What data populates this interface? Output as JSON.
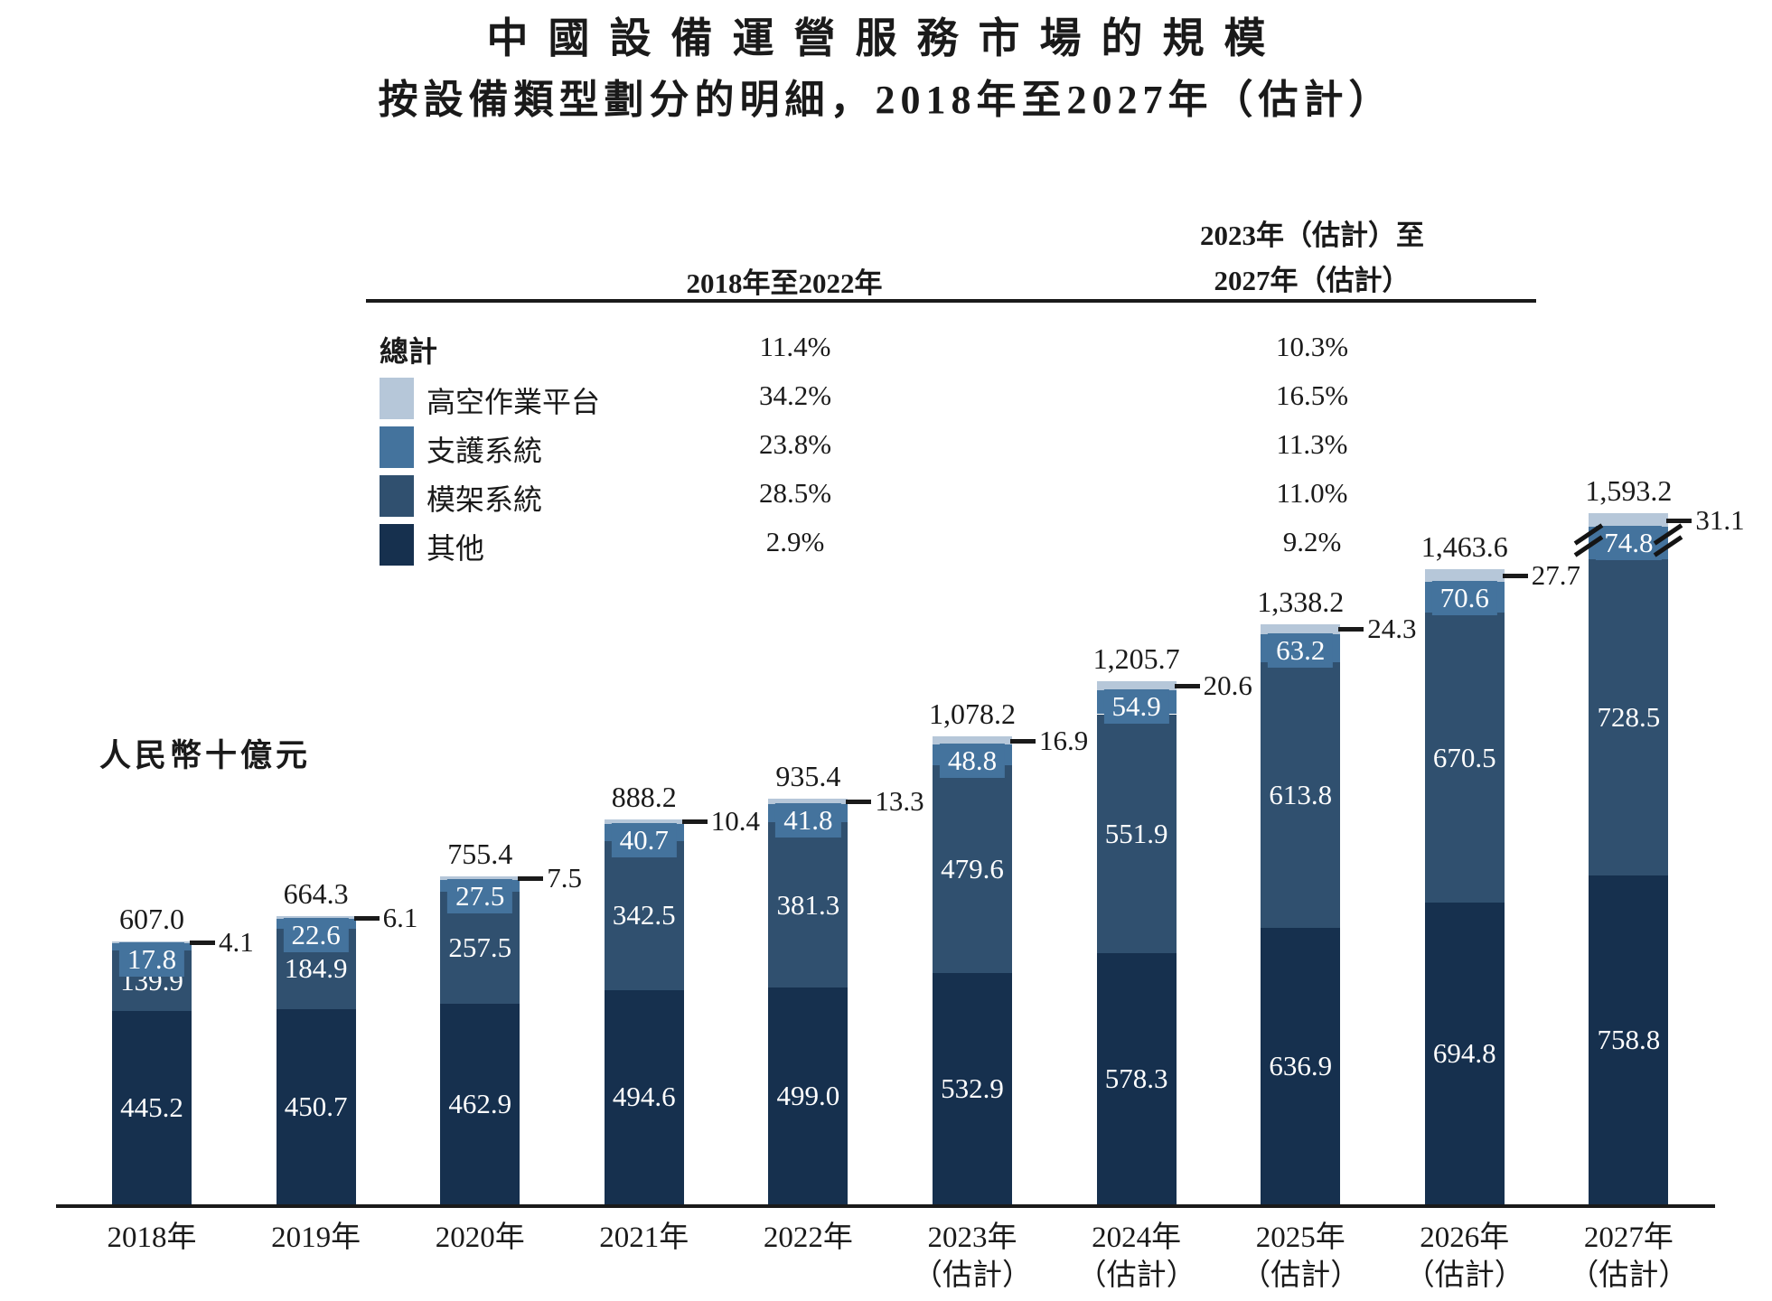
{
  "title": {
    "line1": "中國設備運營服務市場的規模",
    "line2": "按設備類型劃分的明細，2018年至2027年（估計）"
  },
  "unit_label": "人民幣十億元",
  "cagr_table": {
    "col1_header": "2018年至2022年",
    "col2_header_line1": "2023年（估計）至",
    "col2_header_line2": "2027年（估計）",
    "rows": [
      {
        "label": "總計",
        "swatch": null,
        "col1": "11.4%",
        "col2": "10.3%"
      },
      {
        "label": "高空作業平台",
        "swatch": "#b6c7d9",
        "col1": "34.2%",
        "col2": "16.5%"
      },
      {
        "label": "支護系統",
        "swatch": "#44739d",
        "col1": "23.8%",
        "col2": "11.3%"
      },
      {
        "label": "模架系統",
        "swatch": "#30506f",
        "col1": "28.5%",
        "col2": "11.0%"
      },
      {
        "label": "其他",
        "swatch": "#16304e",
        "col1": "2.9%",
        "col2": "9.2%"
      }
    ]
  },
  "chart_data": {
    "type": "bar",
    "stacked": true,
    "title": "中國設備運營服務市場的規模，按設備類型劃分的明細，2018年至2027年（估計）",
    "ylabel": "人民幣十億元",
    "grid": false,
    "legend_position": "table-top",
    "categories": [
      {
        "year": "2018年",
        "note": ""
      },
      {
        "year": "2019年",
        "note": ""
      },
      {
        "year": "2020年",
        "note": ""
      },
      {
        "year": "2021年",
        "note": ""
      },
      {
        "year": "2022年",
        "note": ""
      },
      {
        "year": "2023年",
        "note": "（估計）"
      },
      {
        "year": "2024年",
        "note": "（估計）"
      },
      {
        "year": "2025年",
        "note": "（估計）"
      },
      {
        "year": "2026年",
        "note": "（估計）"
      },
      {
        "year": "2027年",
        "note": "（估計）"
      }
    ],
    "series": [
      {
        "name": "其他",
        "color": "#16304e",
        "values": [
          445.2,
          450.7,
          462.9,
          494.6,
          499.0,
          532.9,
          578.3,
          636.9,
          694.8,
          758.8
        ]
      },
      {
        "name": "模架系統",
        "color": "#30506f",
        "values": [
          139.9,
          184.9,
          257.5,
          342.5,
          381.3,
          479.6,
          551.9,
          613.8,
          670.5,
          728.5
        ]
      },
      {
        "name": "支護系統",
        "color": "#44739d",
        "values": [
          17.8,
          22.6,
          27.5,
          40.7,
          41.8,
          48.8,
          54.9,
          63.2,
          70.6,
          74.8
        ]
      },
      {
        "name": "高空作業平台",
        "color": "#b6c7d9",
        "values": [
          4.1,
          6.1,
          7.5,
          10.4,
          13.3,
          16.9,
          20.6,
          24.3,
          27.7,
          31.1
        ]
      }
    ],
    "totals": [
      "607.0",
      "664.3",
      "755.4",
      "888.2",
      "935.4",
      "1,078.2",
      "1,205.7",
      "1,338.2",
      "1,463.6",
      "1,593.2"
    ],
    "break_bar_index": 9
  }
}
